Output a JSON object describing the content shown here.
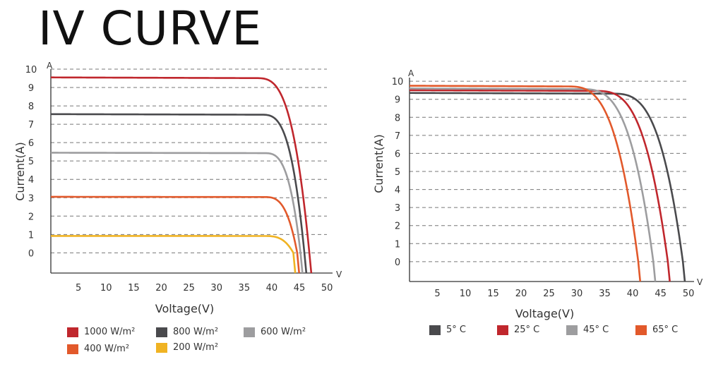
{
  "title": "IV CURVE",
  "chart_data": [
    {
      "type": "line",
      "title": "",
      "xlabel": "Voltage(V)",
      "ylabel": "Current(A)",
      "x_unit": "V",
      "y_unit": "A",
      "xlim": [
        0,
        51
      ],
      "ylim": [
        -1.1,
        10
      ],
      "xticks": [
        5,
        10,
        15,
        20,
        25,
        30,
        35,
        40,
        45,
        50
      ],
      "yticks": [
        0,
        1,
        2,
        3,
        4,
        5,
        6,
        7,
        8,
        9,
        10
      ],
      "grid": "horizontal dashed",
      "legend_position": "bottom",
      "series": [
        {
          "name": "1000 W/m²",
          "color": "#c0272d",
          "Isc": 9.55,
          "Voc": 46.8,
          "knee": 37.0
        },
        {
          "name": "800 W/m²",
          "color": "#4a4a4d",
          "Isc": 7.55,
          "Voc": 45.9,
          "knee": 38.0
        },
        {
          "name": "600 W/m²",
          "color": "#9d9d9f",
          "Isc": 5.45,
          "Voc": 45.2,
          "knee": 38.5
        },
        {
          "name": "400 W/m²",
          "color": "#e2592b",
          "Isc": 3.05,
          "Voc": 44.6,
          "knee": 38.5
        },
        {
          "name": "200 W/m²",
          "color": "#f0b323",
          "Isc": 0.92,
          "Voc": 43.9,
          "knee": 38.5
        }
      ]
    },
    {
      "type": "line",
      "title": "",
      "xlabel": "Voltage(V)",
      "ylabel": "Current(A)",
      "x_unit": "V",
      "y_unit": "A",
      "xlim": [
        0,
        51
      ],
      "ylim": [
        -1.1,
        10.2
      ],
      "xticks": [
        5,
        10,
        15,
        20,
        25,
        30,
        35,
        40,
        45,
        50
      ],
      "yticks": [
        0,
        1,
        2,
        3,
        4,
        5,
        6,
        7,
        8,
        9,
        10
      ],
      "grid": "horizontal dashed",
      "legend_position": "bottom",
      "series": [
        {
          "name": "5° C",
          "color": "#4a4a4d",
          "Isc": 9.35,
          "Voc": 49.0,
          "knee": 36.0
        },
        {
          "name": "25° C",
          "color": "#c0272d",
          "Isc": 9.5,
          "Voc": 46.3,
          "knee": 33.0
        },
        {
          "name": "45° C",
          "color": "#9d9d9f",
          "Isc": 9.6,
          "Voc": 43.7,
          "knee": 30.5
        },
        {
          "name": "65° C",
          "color": "#e2592b",
          "Isc": 9.75,
          "Voc": 41.0,
          "knee": 28.0
        }
      ]
    }
  ]
}
